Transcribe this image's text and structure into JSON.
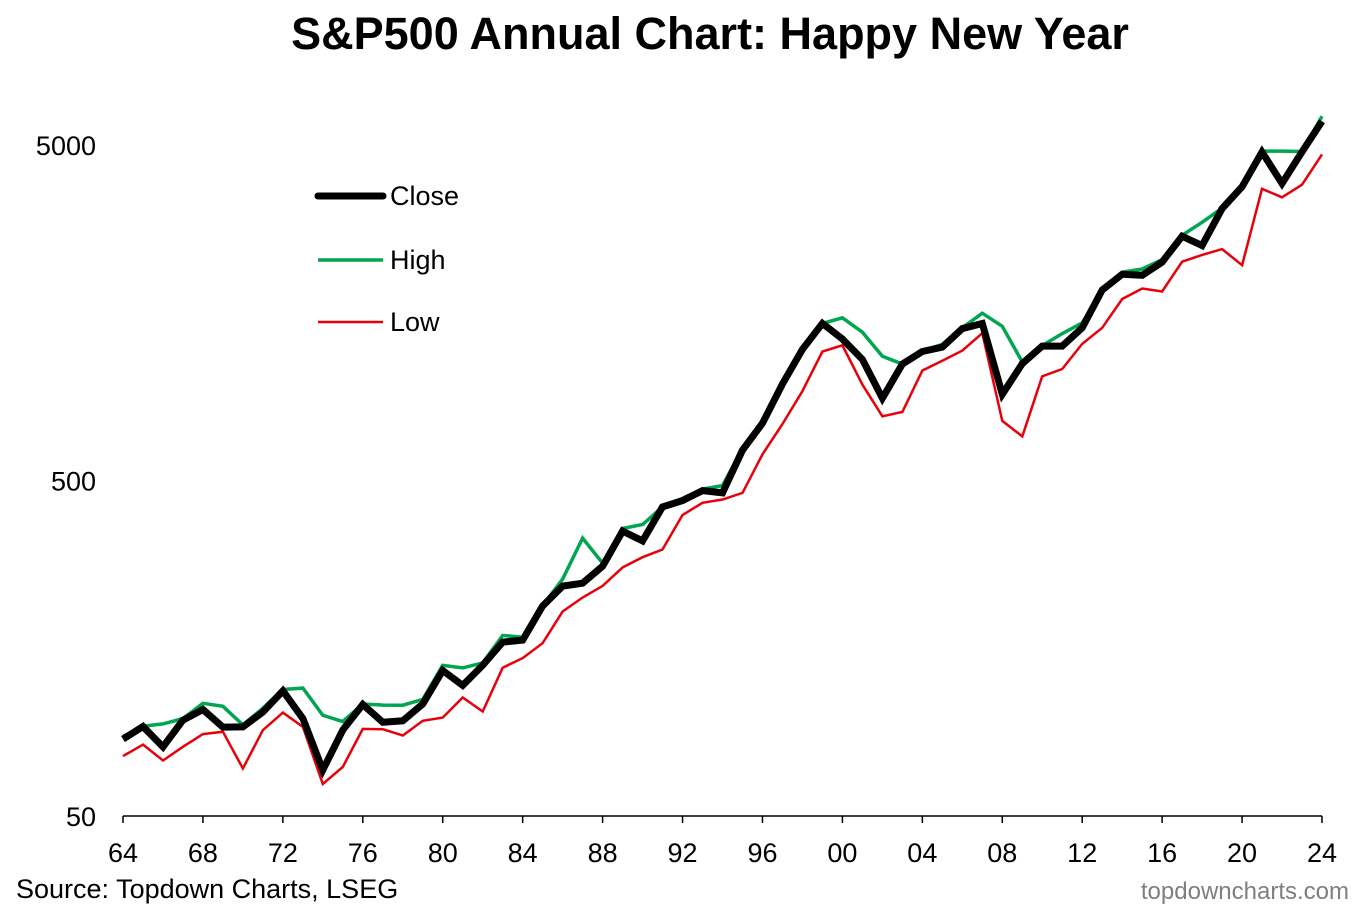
{
  "chart_data": {
    "type": "line",
    "title": "S&P500 Annual Chart: Happy New Year",
    "xlabel": "",
    "ylabel": "",
    "y_scale": "log",
    "ylim": [
      50,
      6500
    ],
    "xlim": [
      1964,
      2024
    ],
    "grid": false,
    "legend_position": "upper-left",
    "x_tick_labels": [
      "64",
      "68",
      "72",
      "76",
      "80",
      "84",
      "88",
      "92",
      "96",
      "00",
      "04",
      "08",
      "12",
      "16",
      "20",
      "24"
    ],
    "y_tick_labels": [
      "5000",
      "500",
      "50"
    ],
    "years": [
      1964,
      1965,
      1966,
      1967,
      1968,
      1969,
      1970,
      1971,
      1972,
      1973,
      1974,
      1975,
      1976,
      1977,
      1978,
      1979,
      1980,
      1981,
      1982,
      1983,
      1984,
      1985,
      1986,
      1987,
      1988,
      1989,
      1990,
      1991,
      1992,
      1993,
      1994,
      1995,
      1996,
      1997,
      1998,
      1999,
      2000,
      2001,
      2002,
      2003,
      2004,
      2005,
      2006,
      2007,
      2008,
      2009,
      2010,
      2011,
      2012,
      2013,
      2014,
      2015,
      2016,
      2017,
      2018,
      2019,
      2020,
      2021,
      2022,
      2023,
      2024
    ],
    "series": [
      {
        "name": "Close",
        "color": "#000000",
        "values": [
          84.75,
          92.43,
          80.33,
          96.47,
          103.86,
          92.06,
          92.15,
          102.09,
          118.05,
          97.55,
          68.56,
          90.19,
          107.46,
          95.1,
          96.11,
          107.94,
          135.76,
          122.55,
          140.64,
          164.93,
          167.24,
          211.28,
          242.17,
          247.08,
          277.72,
          353.4,
          330.22,
          417.09,
          435.71,
          466.45,
          459.27,
          615.93,
          740.74,
          970.43,
          1229.23,
          1469.25,
          1320.28,
          1148.08,
          879.82,
          1111.92,
          1211.92,
          1248.29,
          1418.3,
          1468.36,
          903.25,
          1115.1,
          1257.64,
          1257.6,
          1426.19,
          1848.36,
          2058.9,
          2043.94,
          2238.83,
          2673.61,
          2506.85,
          3230.78,
          3756.07,
          4766.18,
          3839.5,
          4769.83,
          5881.63
        ]
      },
      {
        "name": "High",
        "color": "#00a650",
        "values": [
          86.28,
          92.63,
          94.06,
          97.59,
          108.37,
          106.16,
          93.46,
          104.77,
          119.12,
          120.24,
          99.8,
          95.61,
          107.83,
          107.0,
          106.99,
          111.27,
          140.52,
          138.12,
          143.02,
          172.65,
          170.41,
          212.02,
          254.0,
          336.77,
          283.66,
          359.8,
          369.78,
          417.09,
          442.65,
          471.29,
          482.85,
          621.69,
          757.03,
          983.79,
          1244.93,
          1469.25,
          1527.46,
          1383.37,
          1172.51,
          1111.92,
          1217.33,
          1272.74,
          1427.09,
          1576.09,
          1440.24,
          1127.78,
          1262.6,
          1370.58,
          1474.51,
          1848.36,
          2090.57,
          2134.72,
          2277.53,
          2690.16,
          2940.91,
          3240.02,
          3756.07,
          4793.06,
          4796.56,
          4783.35,
          6090.27
        ]
      },
      {
        "name": "Low",
        "color": "#e8000b",
        "values": [
          75.43,
          81.6,
          73.2,
          80.38,
          87.72,
          89.2,
          69.29,
          90.16,
          101.67,
          92.16,
          62.28,
          70.04,
          90.9,
          90.71,
          86.9,
          96.13,
          98.22,
          112.77,
          102.42,
          138.34,
          147.82,
          163.68,
          203.49,
          223.92,
          242.63,
          275.31,
          295.46,
          311.49,
          394.5,
          429.05,
          438.92,
          459.11,
          598.48,
          737.01,
          923.32,
          1212.19,
          1264.74,
          965.8,
          776.76,
          800.73,
          1063.23,
          1137.5,
          1219.29,
          1374.12,
          752.44,
          676.53,
          1022.58,
          1074.77,
          1277.06,
          1426.19,
          1737.92,
          1867.61,
          1829.08,
          2245.13,
          2351.1,
          2447.89,
          2191.86,
          3700.65,
          3491.58,
          3808.1,
          4688.68
        ]
      }
    ]
  },
  "source": "Source: Topdown Charts, LSEG",
  "watermark": "topdowncharts.com"
}
